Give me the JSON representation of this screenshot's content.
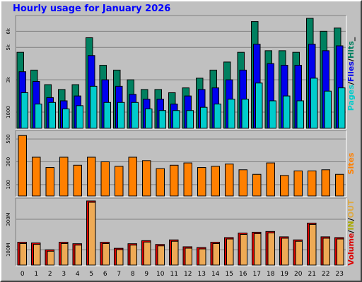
{
  "title": "Hourly usage for January 2026",
  "colors": {
    "background": "#c0c0c0",
    "title": "#0000ff",
    "pages": "#00cccc",
    "files": "#0000ee",
    "hits": "#008060",
    "sites": "#ff8000",
    "volume": "#dd0000",
    "in": "#eeaa55",
    "out": "#ddaa44"
  },
  "legends": {
    "top": [
      {
        "text": "Pages",
        "color": "#00cccc"
      },
      {
        "text": "/",
        "color": "#000000"
      },
      {
        "text": "Files",
        "color": "#0000ee"
      },
      {
        "text": "/",
        "color": "#000000"
      },
      {
        "text": "Hits",
        "color": "#008060"
      },
      {
        "text": "_",
        "color": "#000000"
      }
    ],
    "middle": [
      {
        "text": "Sites",
        "color": "#ff8000"
      }
    ],
    "bottom": [
      {
        "text": "Volume",
        "color": "#dd0000"
      },
      {
        "text": "/",
        "color": "#000000"
      },
      {
        "text": "IN",
        "color": "#aaaa00"
      },
      {
        "text": "/",
        "color": "#000000"
      },
      {
        "text": "OUT",
        "color": "#ddaa44"
      }
    ]
  },
  "chart_data": [
    {
      "type": "bar",
      "panel": "top",
      "categories": [
        "0",
        "1",
        "2",
        "3",
        "4",
        "5",
        "6",
        "7",
        "8",
        "9",
        "10",
        "11",
        "12",
        "13",
        "14",
        "15",
        "16",
        "17",
        "18",
        "19",
        "20",
        "21",
        "22",
        "23"
      ],
      "ylim": [
        0,
        6800
      ],
      "yticks": [
        1000,
        3000,
        5000,
        6000
      ],
      "ytick_labels": [
        "1000",
        "3k",
        "5k",
        "6k"
      ],
      "series": [
        {
          "name": "Hits",
          "values": [
            4700,
            3600,
            2700,
            2400,
            2700,
            5600,
            3900,
            3600,
            3000,
            2400,
            2400,
            2200,
            2500,
            3100,
            3600,
            4100,
            4700,
            6600,
            4800,
            4800,
            4700,
            6800,
            6000,
            6200
          ]
        },
        {
          "name": "Files",
          "values": [
            3500,
            2900,
            1900,
            1700,
            2000,
            4500,
            3000,
            2600,
            2100,
            1800,
            1800,
            1500,
            2000,
            2400,
            2500,
            3000,
            3600,
            5200,
            4000,
            3900,
            3900,
            5200,
            4800,
            5100
          ]
        },
        {
          "name": "Pages",
          "values": [
            2200,
            1500,
            1600,
            1200,
            1400,
            2600,
            1600,
            1600,
            1600,
            1200,
            1100,
            1100,
            1100,
            1300,
            1500,
            1800,
            1800,
            2800,
            1700,
            2000,
            1700,
            3100,
            2300,
            2500
          ]
        }
      ]
    },
    {
      "type": "bar",
      "panel": "middle",
      "categories": [
        "0",
        "1",
        "2",
        "3",
        "4",
        "5",
        "6",
        "7",
        "8",
        "9",
        "10",
        "11",
        "12",
        "13",
        "14",
        "15",
        "16",
        "17",
        "18",
        "19",
        "20",
        "21",
        "22",
        "23"
      ],
      "ylim": [
        0,
        550
      ],
      "yticks": [
        100,
        300,
        500
      ],
      "ytick_labels": [
        "100",
        "300",
        "500"
      ],
      "series": [
        {
          "name": "Sites",
          "values": [
            530,
            340,
            250,
            340,
            270,
            340,
            300,
            260,
            340,
            310,
            240,
            270,
            290,
            250,
            260,
            280,
            230,
            190,
            290,
            180,
            220,
            220,
            230,
            190
          ]
        }
      ]
    },
    {
      "type": "bar",
      "panel": "bottom",
      "categories": [
        "0",
        "1",
        "2",
        "3",
        "4",
        "5",
        "6",
        "7",
        "8",
        "9",
        "10",
        "11",
        "12",
        "13",
        "14",
        "15",
        "16",
        "17",
        "18",
        "19",
        "20",
        "21",
        "22",
        "23"
      ],
      "ylim": [
        0,
        420
      ],
      "yticks": [
        100,
        300
      ],
      "ytick_labels": [
        "100M",
        "300M"
      ],
      "series": [
        {
          "name": "Volume",
          "values": [
            150,
            145,
            100,
            150,
            140,
            420,
            150,
            110,
            140,
            160,
            135,
            165,
            120,
            115,
            150,
            180,
            210,
            215,
            220,
            185,
            165,
            275,
            185,
            180
          ]
        }
      ]
    }
  ]
}
